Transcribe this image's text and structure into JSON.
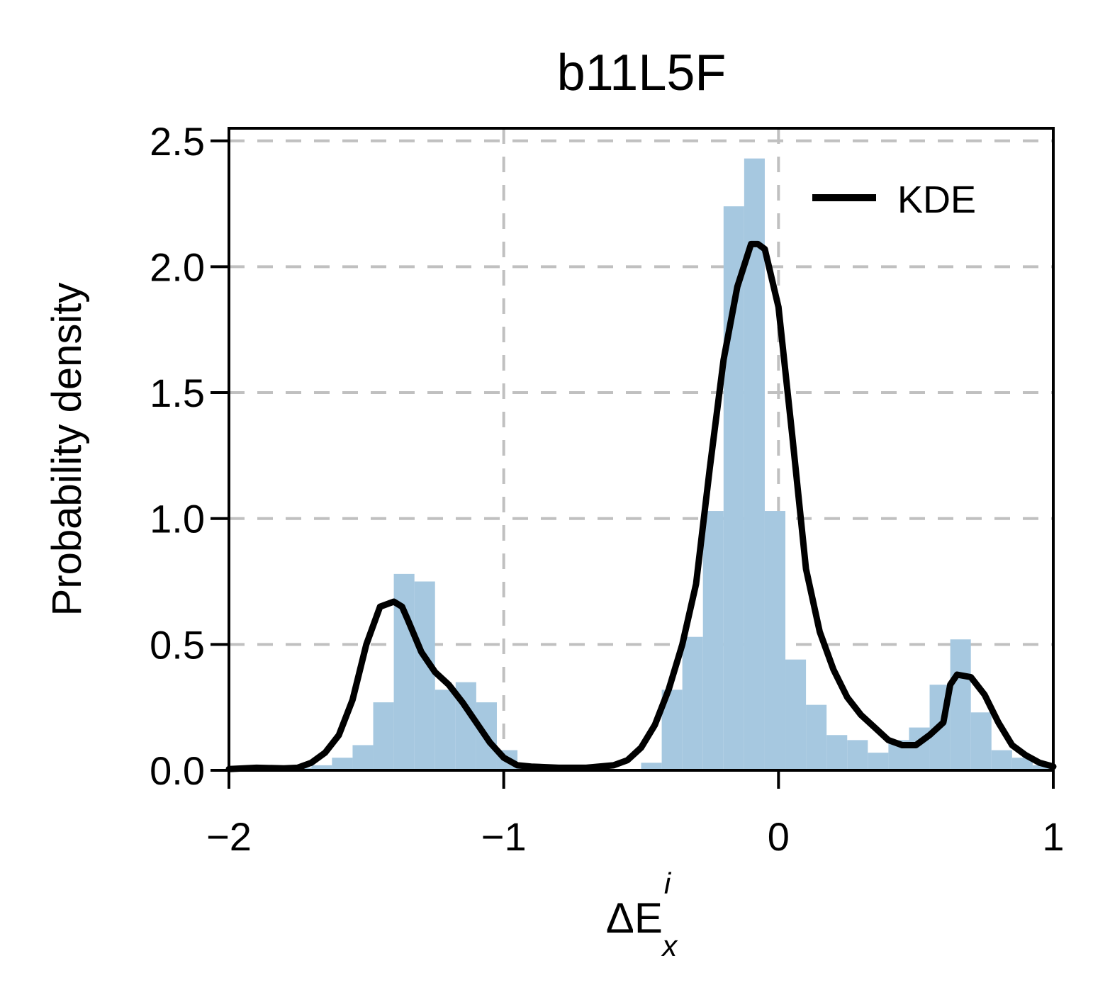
{
  "chart_data": {
    "type": "histogram",
    "title": "b11L5F",
    "xlabel": {
      "prefix": "ΔE",
      "sub": "x",
      "sup": "i"
    },
    "ylabel": "Probability density",
    "xlim": [
      -2,
      1
    ],
    "ylim": [
      0,
      2.55
    ],
    "x_ticks": [
      -2,
      -1,
      0,
      1
    ],
    "x_tick_labels": [
      "−2",
      "−1",
      "0",
      "1"
    ],
    "y_ticks": [
      0,
      0.5,
      1.0,
      1.5,
      2.0,
      2.5
    ],
    "y_tick_labels": [
      "0.0",
      "0.5",
      "1.0",
      "1.5",
      "2.0",
      "2.5"
    ],
    "grid": true,
    "legend": {
      "position": "top-right",
      "entries": [
        {
          "label": "KDE",
          "style": "line"
        }
      ]
    },
    "colors": {
      "histogram": "#a6c8e0",
      "kde": "#000000",
      "grid": "#c0c0c0"
    },
    "histogram": {
      "bin_edges": [
        -1.85,
        -1.775,
        -1.7,
        -1.625,
        -1.55,
        -1.475,
        -1.4,
        -1.325,
        -1.25,
        -1.175,
        -1.1,
        -1.025,
        -0.95,
        -0.875,
        -0.8,
        -0.725,
        -0.65,
        -0.575,
        -0.5,
        -0.425,
        -0.35,
        -0.275,
        -0.2,
        -0.125,
        -0.05,
        0.025,
        0.1,
        0.175,
        0.25,
        0.325,
        0.4,
        0.475,
        0.55,
        0.625,
        0.7,
        0.775,
        0.85,
        0.925,
        1.0
      ],
      "densities": [
        0.005,
        0.01,
        0.02,
        0.05,
        0.1,
        0.27,
        0.78,
        0.75,
        0.32,
        0.35,
        0.27,
        0.08,
        0.02,
        0.01,
        0.0,
        0.005,
        0.005,
        0.005,
        0.03,
        0.32,
        0.53,
        1.03,
        2.24,
        2.43,
        1.03,
        0.44,
        0.26,
        0.14,
        0.12,
        0.07,
        0.12,
        0.17,
        0.34,
        0.52,
        0.23,
        0.08,
        0.05,
        0.02
      ]
    },
    "kde": {
      "x": [
        -2.0,
        -1.9,
        -1.8,
        -1.75,
        -1.7,
        -1.65,
        -1.6,
        -1.55,
        -1.5,
        -1.45,
        -1.4,
        -1.37,
        -1.35,
        -1.3,
        -1.25,
        -1.2,
        -1.15,
        -1.1,
        -1.05,
        -1.0,
        -0.95,
        -0.9,
        -0.8,
        -0.7,
        -0.6,
        -0.55,
        -0.5,
        -0.45,
        -0.4,
        -0.35,
        -0.3,
        -0.25,
        -0.2,
        -0.15,
        -0.1,
        -0.075,
        -0.05,
        0.0,
        0.05,
        0.1,
        0.15,
        0.2,
        0.25,
        0.3,
        0.35,
        0.4,
        0.45,
        0.5,
        0.55,
        0.6,
        0.625,
        0.65,
        0.7,
        0.75,
        0.8,
        0.85,
        0.9,
        0.95,
        1.0
      ],
      "y": [
        0.005,
        0.01,
        0.008,
        0.01,
        0.03,
        0.07,
        0.14,
        0.28,
        0.5,
        0.65,
        0.67,
        0.65,
        0.6,
        0.47,
        0.39,
        0.34,
        0.27,
        0.19,
        0.11,
        0.05,
        0.02,
        0.015,
        0.01,
        0.01,
        0.02,
        0.04,
        0.09,
        0.18,
        0.32,
        0.5,
        0.74,
        1.2,
        1.63,
        1.92,
        2.09,
        2.09,
        2.07,
        1.84,
        1.33,
        0.8,
        0.55,
        0.4,
        0.29,
        0.22,
        0.17,
        0.12,
        0.1,
        0.1,
        0.14,
        0.19,
        0.34,
        0.38,
        0.37,
        0.3,
        0.19,
        0.1,
        0.06,
        0.03,
        0.015
      ]
    }
  }
}
